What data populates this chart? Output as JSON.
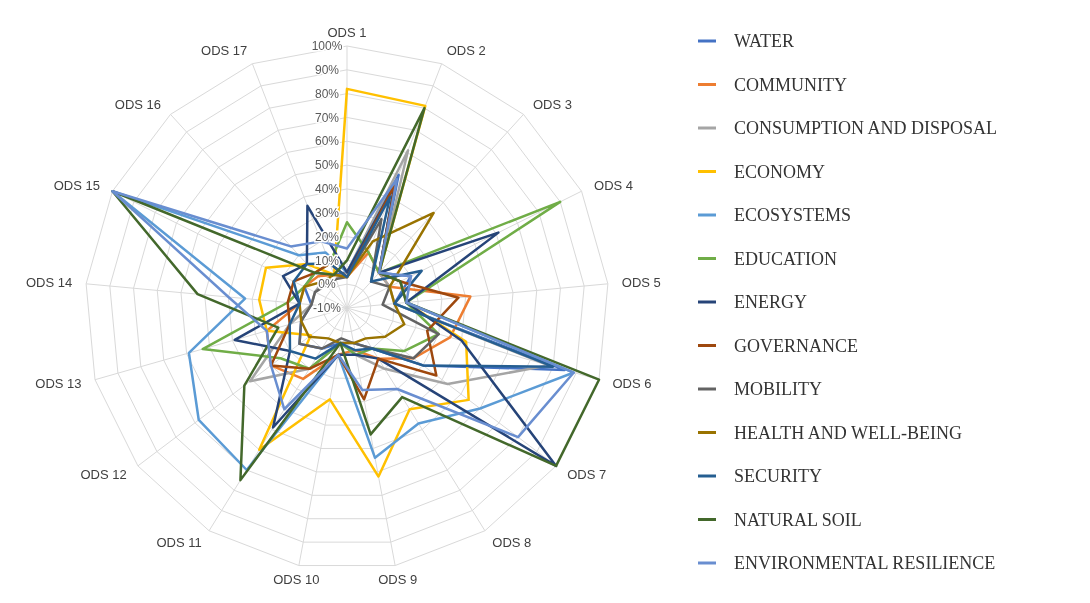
{
  "chart_data": {
    "type": "radar",
    "categories": [
      "ODS 1",
      "ODS 2",
      "ODS 3",
      "ODS 4",
      "ODS 5",
      "ODS 6",
      "ODS 7",
      "ODS 8",
      "ODS 9",
      "ODS 10",
      "ODS 11",
      "ODS 12",
      "ODS 13",
      "ODS 14",
      "ODS 15",
      "ODS 16",
      "ODS 17"
    ],
    "ylim": [
      -10,
      100
    ],
    "yticks": [
      {
        "value": -10,
        "label": "-10%"
      },
      {
        "value": 0,
        "label": "0%"
      },
      {
        "value": 10,
        "label": "10%"
      },
      {
        "value": 20,
        "label": "20%"
      },
      {
        "value": 30,
        "label": "30%"
      },
      {
        "value": 40,
        "label": "40%"
      },
      {
        "value": 50,
        "label": "50%"
      },
      {
        "value": 60,
        "label": "60%"
      },
      {
        "value": 70,
        "label": "70%"
      },
      {
        "value": 80,
        "label": "80%"
      },
      {
        "value": 90,
        "label": "90%"
      },
      {
        "value": 100,
        "label": "100%"
      }
    ],
    "grid": true,
    "legend": "right",
    "series": [
      {
        "name": "WATER",
        "color": "#4472c4",
        "values": [
          5,
          50,
          10,
          20,
          10,
          85,
          30,
          10,
          5,
          5,
          10,
          15,
          10,
          5,
          10,
          10,
          5
        ]
      },
      {
        "name": "COMMUNITY",
        "color": "#ed7d31",
        "values": [
          3,
          15,
          10,
          10,
          42,
          35,
          25,
          15,
          8,
          10,
          25,
          30,
          25,
          10,
          10,
          8,
          5
        ]
      },
      {
        "name": "CONSUMPTION AND DISPOSAL",
        "color": "#a5a5a5",
        "values": [
          5,
          61,
          10,
          10,
          10,
          78,
          43,
          20,
          10,
          5,
          20,
          41,
          15,
          5,
          5,
          5,
          3
        ]
      },
      {
        "name": "ECONOMY",
        "color": "#ffc000",
        "values": [
          82,
          81,
          10,
          15,
          15,
          42,
          54,
          40,
          62,
          29,
          60,
          9,
          25,
          27,
          28,
          15,
          5
        ]
      },
      {
        "name": "ECOSYSTEMS",
        "color": "#5b9bd5",
        "values": [
          5,
          45,
          10,
          15,
          15,
          89,
          60,
          47,
          54,
          10,
          70,
          68,
          59,
          33,
          100,
          20,
          15
        ]
      },
      {
        "name": "EDUCATION",
        "color": "#70ad47",
        "values": [
          26,
          15,
          10,
          90,
          15,
          30,
          20,
          10,
          10,
          5,
          20,
          25,
          53,
          15,
          10,
          10,
          10
        ]
      },
      {
        "name": "ENERGY",
        "color": "#264478",
        "values": [
          5,
          45,
          10,
          61,
          15,
          40,
          100,
          15,
          10,
          10,
          49,
          20,
          39,
          10,
          20,
          15,
          36
        ]
      },
      {
        "name": "GOVERNANCE",
        "color": "#9e480e",
        "values": [
          3,
          46,
          10,
          15,
          37,
          25,
          37,
          15,
          29,
          10,
          20,
          30,
          15,
          15,
          15,
          10,
          10
        ]
      },
      {
        "name": "MOBILITY",
        "color": "#636363",
        "values": [
          3,
          30,
          5,
          10,
          5,
          30,
          25,
          10,
          5,
          3,
          10,
          15,
          10,
          5,
          5,
          3,
          3
        ]
      },
      {
        "name": "HEALTH AND WELL-BEING",
        "color": "#997300",
        "values": [
          3,
          20,
          44,
          10,
          10,
          15,
          10,
          5,
          5,
          5,
          5,
          10,
          10,
          10,
          10,
          5,
          5
        ]
      },
      {
        "name": "SECURITY",
        "color": "#255e91",
        "values": [
          3,
          40,
          5,
          25,
          10,
          80,
          30,
          10,
          8,
          5,
          15,
          20,
          15,
          10,
          15,
          15,
          10
        ]
      },
      {
        "name": "NATURAL SOIL",
        "color": "#43682b",
        "values": [
          10,
          80,
          10,
          15,
          15,
          100,
          100,
          34,
          44,
          5,
          75,
          44,
          20,
          53,
          100,
          10,
          5
        ]
      },
      {
        "name": "ENVIRONMENTAL RESILIENCE",
        "color": "#698ed0",
        "values": [
          15,
          48,
          10,
          20,
          15,
          89,
          80,
          30,
          25,
          10,
          40,
          30,
          25,
          40,
          100,
          25,
          20
        ]
      }
    ]
  }
}
